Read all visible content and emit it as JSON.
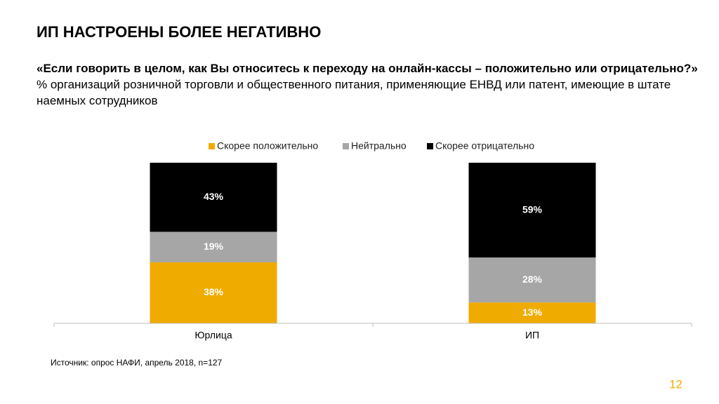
{
  "chart_data": {
    "type": "stacked_bar",
    "title": "ИП НАСТРОЕНЫ БОЛЕЕ НЕГАТИВНО",
    "subtitle_question": "«Если говорить в целом, как Вы относитесь к переходу на онлайн-кассы – положительно или отрицательно?»",
    "subtitle": "% организаций розничной торговли и общественного питания, применяющие ЕНВД или патент, имеющие в штате наемных сотрудников",
    "categories": [
      "Юрлица",
      "ИП"
    ],
    "series": [
      {
        "name": "Скорее положительно",
        "color": "#f0ab00",
        "values": [
          38,
          13
        ],
        "value_labels": [
          "38%",
          "13%"
        ]
      },
      {
        "name": "Нейтрально",
        "color": "#a6a6a6",
        "values": [
          19,
          28
        ],
        "value_labels": [
          "19%",
          "28%"
        ]
      },
      {
        "name": "Скорее отрицательно",
        "color": "#000000",
        "values": [
          43,
          59
        ],
        "value_labels": [
          "43%",
          "59%"
        ]
      }
    ],
    "legend": "top",
    "source": "Источник: опрос НАФИ, апрель 2018, n=127"
  },
  "page_number": "12"
}
